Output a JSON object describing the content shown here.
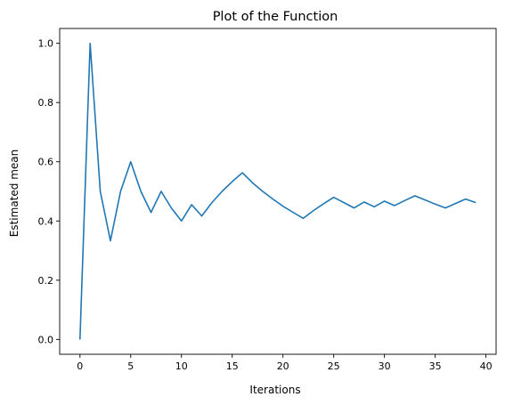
{
  "chart_data": {
    "type": "line",
    "title": "Plot of the Function",
    "xlabel": "Iterations",
    "ylabel": "Estimated mean",
    "xlim": [
      -2,
      41
    ],
    "ylim": [
      -0.05,
      1.05
    ],
    "xticks": [
      0,
      5,
      10,
      15,
      20,
      25,
      30,
      35,
      40
    ],
    "xtick_labels": [
      "0",
      "5",
      "10",
      "15",
      "20",
      "25",
      "30",
      "35",
      "40"
    ],
    "yticks": [
      0.0,
      0.2,
      0.4,
      0.6,
      0.8,
      1.0
    ],
    "ytick_labels": [
      "0.0",
      "0.2",
      "0.4",
      "0.6",
      "0.8",
      "1.0"
    ],
    "grid": false,
    "series": [
      {
        "color": "#1f77b4",
        "x": [
          0,
          1,
          2,
          3,
          4,
          5,
          6,
          7,
          8,
          9,
          10,
          11,
          12,
          13,
          14,
          15,
          16,
          17,
          18,
          19,
          20,
          21,
          22,
          23,
          24,
          25,
          26,
          27,
          28,
          29,
          30,
          31,
          32,
          33,
          34,
          35,
          36,
          37,
          38,
          39
        ],
        "y": [
          0.0,
          1.0,
          0.5,
          0.333,
          0.5,
          0.6,
          0.5,
          0.429,
          0.5,
          0.444,
          0.4,
          0.455,
          0.417,
          0.462,
          0.5,
          0.533,
          0.563,
          0.529,
          0.5,
          0.474,
          0.45,
          0.429,
          0.409,
          0.435,
          0.458,
          0.48,
          0.462,
          0.444,
          0.464,
          0.448,
          0.467,
          0.452,
          0.469,
          0.485,
          0.471,
          0.457,
          0.444,
          0.459,
          0.474,
          0.462
        ]
      }
    ]
  }
}
